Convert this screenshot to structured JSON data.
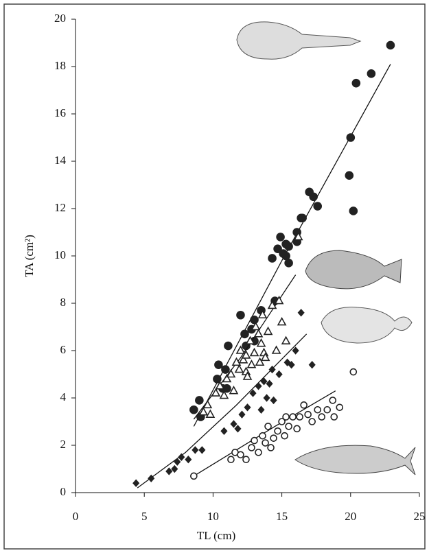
{
  "chart_data": {
    "type": "scatter",
    "xlabel": "TL (cm)",
    "ylabel": "TA (cm²)",
    "xlim": [
      0,
      25
    ],
    "xticks": [
      0,
      5,
      10,
      15,
      20,
      25
    ],
    "ylim": [
      0,
      20
    ],
    "yticks": [
      0,
      2,
      4,
      6,
      8,
      10,
      12,
      14,
      16,
      18,
      20
    ],
    "series": [
      {
        "marker": "circle-filled",
        "color": "#222",
        "x": [
          8.6,
          9.0,
          9.1,
          10.3,
          10.9,
          10.7,
          11.0,
          12.0,
          11.1,
          12.3,
          12.4,
          12.8,
          13.0,
          13.0,
          13.5,
          14.3,
          14.7,
          14.9,
          15.1,
          15.3,
          15.3,
          15.5,
          15.5,
          16.1,
          16.1,
          14.5,
          16.4,
          17.0,
          17.3,
          17.6,
          16.5,
          19.9,
          20.0,
          20.2,
          20.4,
          21.5,
          22.9,
          10.4
        ],
        "values": [
          3.5,
          3.9,
          3.2,
          4.8,
          5.2,
          4.4,
          4.4,
          7.5,
          6.2,
          6.7,
          6.2,
          6.9,
          7.3,
          6.4,
          7.7,
          9.9,
          10.3,
          10.8,
          10.1,
          10.5,
          10.0,
          10.4,
          9.7,
          11.0,
          10.6,
          8.1,
          11.6,
          12.7,
          12.5,
          12.1,
          11.6,
          13.4,
          15.0,
          11.9,
          17.3,
          17.7,
          18.9,
          5.4
        ],
        "fit": {
          "x": [
            8.6,
            15,
            22.9
          ],
          "y": [
            2.8,
            9.8,
            18.1
          ]
        }
      },
      {
        "marker": "triangle-open",
        "color": "#222",
        "x": [
          9.3,
          9.6,
          9.8,
          10.2,
          10.5,
          10.8,
          11.0,
          11.3,
          11.5,
          11.7,
          11.9,
          12.0,
          12.2,
          12.4,
          12.5,
          12.7,
          12.8,
          13.0,
          13.1,
          13.3,
          13.4,
          13.5,
          13.6,
          13.7,
          13.8,
          14.0,
          14.3,
          14.6,
          14.8,
          15.0,
          15.3,
          16.2,
          12.4
        ],
        "values": [
          3.4,
          3.7,
          3.3,
          4.2,
          4.5,
          4.1,
          4.8,
          5.0,
          4.3,
          5.5,
          5.2,
          6.0,
          5.6,
          5.1,
          4.9,
          6.4,
          5.4,
          5.9,
          7.0,
          6.7,
          5.5,
          6.3,
          7.5,
          5.9,
          5.7,
          6.8,
          7.9,
          6.0,
          8.1,
          7.2,
          6.4,
          10.8,
          5.8
        ],
        "fit": {
          "x": [
            8.6,
            12,
            16.0
          ],
          "y": [
            3.1,
            5.7,
            9.2
          ]
        }
      },
      {
        "marker": "diamond-filled",
        "color": "#222",
        "x": [
          4.4,
          5.5,
          6.8,
          7.2,
          7.4,
          7.7,
          8.2,
          8.7,
          9.2,
          10.8,
          11.5,
          12.1,
          12.5,
          12.9,
          13.3,
          13.5,
          13.7,
          14.1,
          14.3,
          14.4,
          14.8,
          15.4,
          15.7,
          16.0,
          16.4,
          17.2,
          11.8,
          13.9
        ],
        "values": [
          0.4,
          0.6,
          0.9,
          1.0,
          1.3,
          1.5,
          1.4,
          1.8,
          1.8,
          2.6,
          2.9,
          3.3,
          3.6,
          4.2,
          4.5,
          3.5,
          4.7,
          4.6,
          5.2,
          3.9,
          5.0,
          5.5,
          5.4,
          6.0,
          7.6,
          5.4,
          2.7,
          4.0
        ],
        "fit": {
          "x": [
            4.5,
            8,
            11.7,
            16.8
          ],
          "y": [
            0.2,
            1.7,
            3.7,
            6.7
          ]
        }
      },
      {
        "marker": "circle-open",
        "color": "#222",
        "x": [
          8.6,
          11.3,
          11.6,
          12.0,
          12.4,
          12.8,
          13.0,
          13.3,
          13.6,
          13.8,
          14.0,
          14.2,
          14.4,
          14.7,
          15.0,
          15.2,
          15.5,
          15.8,
          16.1,
          16.3,
          16.6,
          16.9,
          17.2,
          17.6,
          17.9,
          18.3,
          18.7,
          18.8,
          19.2,
          20.2,
          15.3
        ],
        "values": [
          0.7,
          1.4,
          1.7,
          1.6,
          1.4,
          1.9,
          2.2,
          1.7,
          2.4,
          2.1,
          2.8,
          1.9,
          2.3,
          2.6,
          3.0,
          2.4,
          2.8,
          3.2,
          2.7,
          3.2,
          3.7,
          3.3,
          3.0,
          3.5,
          3.2,
          3.5,
          3.9,
          3.2,
          3.6,
          5.1,
          3.2
        ],
        "fit": {
          "x": [
            8.6,
            14.5,
            18.9
          ],
          "y": [
            0.7,
            2.8,
            4.3
          ]
        }
      }
    ]
  }
}
